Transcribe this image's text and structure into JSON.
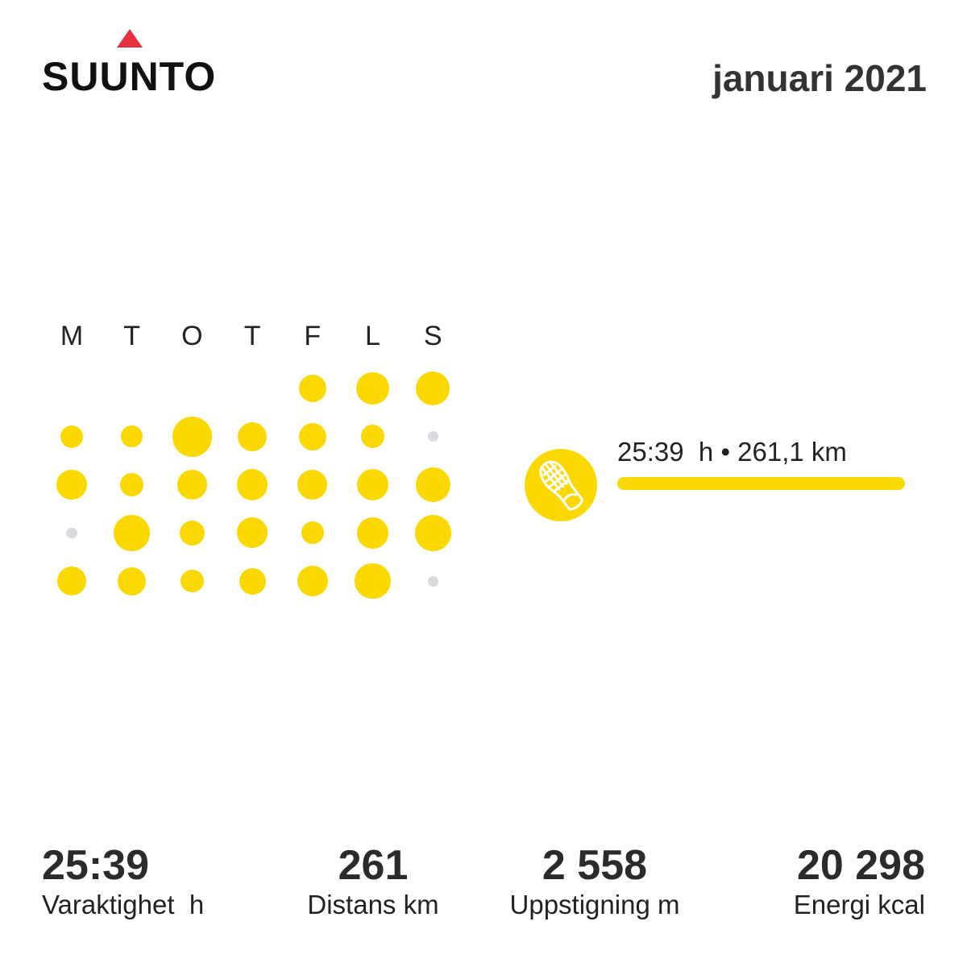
{
  "brand": {
    "name": "SUUNTO",
    "triangle_color": "#e8313f"
  },
  "header": {
    "month_title": "januari 2021"
  },
  "colors": {
    "accent": "#fbd800",
    "inactive": "#d8dadd"
  },
  "calendar": {
    "weekdays": [
      "M",
      "T",
      "O",
      "T",
      "F",
      "L",
      "S"
    ],
    "weeks": [
      [
        null,
        null,
        null,
        null,
        {
          "size": 0.55,
          "active": true
        },
        {
          "size": 0.65,
          "active": true
        },
        {
          "size": 0.68,
          "active": true
        }
      ],
      [
        {
          "size": 0.46,
          "active": true
        },
        {
          "size": 0.43,
          "active": true
        },
        {
          "size": 0.8,
          "active": true
        },
        {
          "size": 0.58,
          "active": true
        },
        {
          "size": 0.55,
          "active": true
        },
        {
          "size": 0.47,
          "active": true
        },
        {
          "size": 0.21,
          "active": false
        }
      ],
      [
        {
          "size": 0.6,
          "active": true
        },
        {
          "size": 0.47,
          "active": true
        },
        {
          "size": 0.59,
          "active": true
        },
        {
          "size": 0.62,
          "active": true
        },
        {
          "size": 0.6,
          "active": true
        },
        {
          "size": 0.64,
          "active": true
        },
        {
          "size": 0.7,
          "active": true
        }
      ],
      [
        {
          "size": 0.21,
          "active": false
        },
        {
          "size": 0.72,
          "active": true
        },
        {
          "size": 0.5,
          "active": true
        },
        {
          "size": 0.61,
          "active": true
        },
        {
          "size": 0.45,
          "active": true
        },
        {
          "size": 0.62,
          "active": true
        },
        {
          "size": 0.72,
          "active": true
        }
      ],
      [
        {
          "size": 0.59,
          "active": true
        },
        {
          "size": 0.57,
          "active": true
        },
        {
          "size": 0.46,
          "active": true
        },
        {
          "size": 0.53,
          "active": true
        },
        {
          "size": 0.61,
          "active": true
        },
        {
          "size": 0.71,
          "active": true
        },
        {
          "size": 0.21,
          "active": false
        }
      ]
    ]
  },
  "activity": {
    "icon": "running-shoe-icon",
    "summary": "25:39  h • 261,1 km",
    "bar_fraction": 1.0
  },
  "stats": [
    {
      "value": "25:39",
      "label": "Varaktighet  h"
    },
    {
      "value": "261",
      "label": "Distans km"
    },
    {
      "value": "2 558",
      "label": "Uppstigning m"
    },
    {
      "value": "20 298",
      "label": "Energi kcal"
    }
  ]
}
